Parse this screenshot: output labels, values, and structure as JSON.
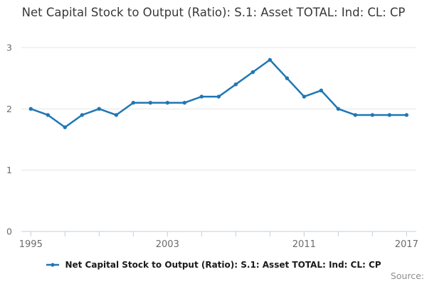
{
  "title": {
    "text": "Net Capital Stock to Output (Ratio): S.1: Asset TOTAL: Ind: CL: CP"
  },
  "legend": {
    "label": "Net Capital Stock to Output (Ratio): S.1: Asset TOTAL: Ind: CL: CP"
  },
  "source_label": "Source:",
  "colors": {
    "line": "#1f77b4",
    "grid": "#e4e4e4",
    "axis": "#c2cfdd",
    "axis_text": "#6b6b6b",
    "title_text": "#383838",
    "legend_text": "#1a1a1a",
    "source_text": "#8e8e8e",
    "background": "#ffffff"
  },
  "chart_data": {
    "type": "line",
    "title": "Net Capital Stock to Output (Ratio): S.1: Asset TOTAL: Ind: CL: CP",
    "xlabel": "",
    "ylabel": "",
    "x": [
      1995,
      1996,
      1997,
      1998,
      1999,
      2000,
      2001,
      2002,
      2003,
      2004,
      2005,
      2006,
      2007,
      2008,
      2009,
      2010,
      2011,
      2012,
      2013,
      2014,
      2015,
      2016,
      2017
    ],
    "series": [
      {
        "name": "Net Capital Stock to Output (Ratio): S.1: Asset TOTAL: Ind: CL: CP",
        "values": [
          2.0,
          1.9,
          1.7,
          1.9,
          2.0,
          1.9,
          2.1,
          2.1,
          2.1,
          2.1,
          2.2,
          2.2,
          2.4,
          2.6,
          2.8,
          2.5,
          2.2,
          2.3,
          2.0,
          1.9,
          1.9,
          1.9,
          1.9
        ]
      }
    ],
    "ylim": [
      0,
      3
    ],
    "yticks": [
      0,
      1,
      2,
      3
    ],
    "xtick_step": 2,
    "xtick_labels": [
      1995,
      2003,
      2011,
      2017
    ],
    "grid": "horizontal",
    "legend_position": "bottom",
    "markers": true
  }
}
